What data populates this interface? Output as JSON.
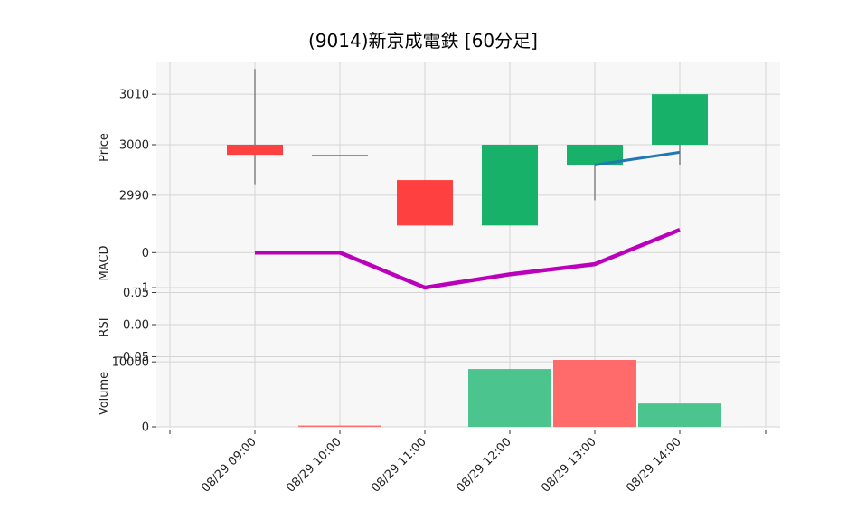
{
  "chart_data": {
    "type": "candlestick",
    "title": "(9014)新京成電鉄  [60分足]",
    "x_tick_labels": [
      "08/29 09:00",
      "08/29 10:00",
      "08/29 11:00",
      "08/29 12:00",
      "08/29 13:00",
      "08/29 14:00"
    ],
    "colors": {
      "up": "#17b169",
      "down": "#ff4040",
      "macd": "#bb00bb",
      "signal": "#1f77b4",
      "volume_up": "#4cc48e",
      "volume_down": "#ff6b6b",
      "background": "#f7f7f7",
      "grid": "#d4d4d4"
    },
    "panels": {
      "price": {
        "ylabel": "Price",
        "ylim": [
          2983.7,
          3016.3
        ],
        "yticks": [
          2990,
          3000,
          3010
        ],
        "ytick_labels": [
          "2990",
          "3000",
          "3010"
        ],
        "candles": [
          {
            "label": "08/29 09:00",
            "open": 3000,
            "high": 3015,
            "low": 2992,
            "close": 2998
          },
          {
            "label": "08/29 10:00",
            "open": 2998,
            "high": 2998,
            "low": 2998,
            "close": 2998
          },
          {
            "label": "08/29 11:00",
            "open": 2993,
            "high": 2993,
            "low": 2984,
            "close": 2984
          },
          {
            "label": "08/29 12:00",
            "open": 2984,
            "high": 3000,
            "low": 2984,
            "close": 3000
          },
          {
            "label": "08/29 13:00",
            "open": 2996,
            "high": 3000,
            "low": 2989,
            "close": 3000
          },
          {
            "label": "08/29 14:00",
            "open": 3000,
            "high": 3010,
            "low": 2996,
            "close": 3010
          }
        ],
        "overlay_line": {
          "x": [
            "08/29 13:00",
            "08/29 14:00"
          ],
          "values": [
            2996,
            2998.5
          ]
        }
      },
      "macd": {
        "ylabel": "MACD",
        "ylim": [
          -1.05,
          0.73
        ],
        "yticks": [
          0,
          -1
        ],
        "ytick_labels": [
          "0",
          "−1"
        ],
        "values": [
          0,
          0,
          -1,
          -0.62,
          -0.33,
          0.65
        ]
      },
      "rsi": {
        "ylabel": "RSI",
        "ylim": [
          -0.055,
          0.055
        ],
        "yticks": [
          0.05,
          0.0,
          -0.05
        ],
        "ytick_labels": [
          "0.05",
          "0.00",
          "−0.05"
        ],
        "values": []
      },
      "volume": {
        "ylabel": "Volume",
        "ylim": [
          0,
          10300
        ],
        "yticks": [
          0,
          10000
        ],
        "ytick_labels": [
          "0",
          "10000"
        ],
        "bars": [
          {
            "label": "08/29 10:00",
            "value": 200,
            "direction": "down"
          },
          {
            "label": "08/29 12:00",
            "value": 8900,
            "direction": "up"
          },
          {
            "label": "08/29 13:00",
            "value": 10300,
            "direction": "down"
          },
          {
            "label": "08/29 14:00",
            "value": 3600,
            "direction": "up"
          }
        ]
      }
    }
  }
}
